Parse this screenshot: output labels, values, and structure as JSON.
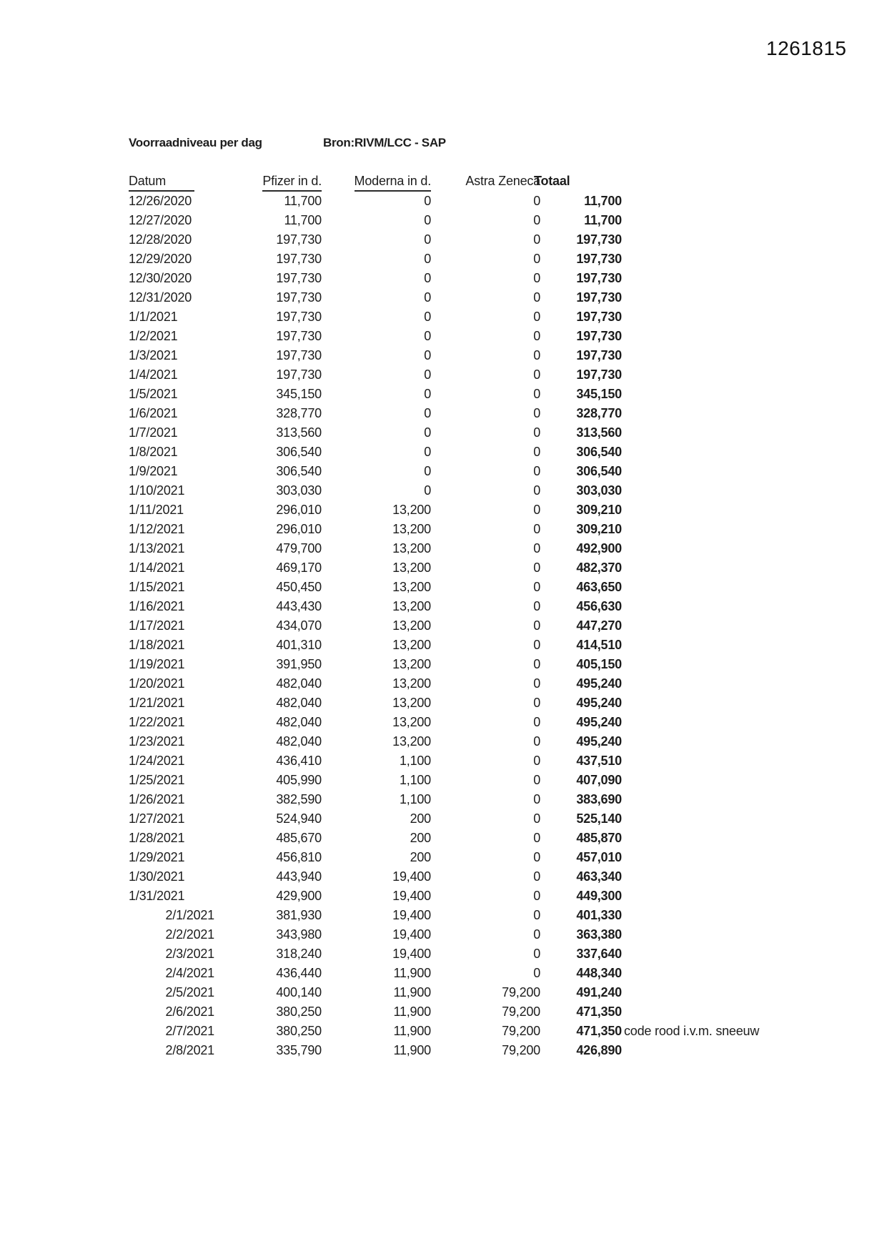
{
  "page": {
    "scan_number": "1261815"
  },
  "header": {
    "title": "Voorraadniveau per dag",
    "source": "Bron:RIVM/LCC - SAP"
  },
  "table": {
    "columns": [
      "Datum",
      "Pfizer in d.",
      "Moderna in d.",
      "Astra Zeneca",
      "Totaal"
    ],
    "rows": [
      {
        "date": "12/26/2020",
        "pfizer": "11,700",
        "moderna": "0",
        "astra": "0",
        "totaal": "11,700",
        "note": ""
      },
      {
        "date": "12/27/2020",
        "pfizer": "11,700",
        "moderna": "0",
        "astra": "0",
        "totaal": "11,700",
        "note": ""
      },
      {
        "date": "12/28/2020",
        "pfizer": "197,730",
        "moderna": "0",
        "astra": "0",
        "totaal": "197,730",
        "note": ""
      },
      {
        "date": "12/29/2020",
        "pfizer": "197,730",
        "moderna": "0",
        "astra": "0",
        "totaal": "197,730",
        "note": ""
      },
      {
        "date": "12/30/2020",
        "pfizer": "197,730",
        "moderna": "0",
        "astra": "0",
        "totaal": "197,730",
        "note": ""
      },
      {
        "date": "12/31/2020",
        "pfizer": "197,730",
        "moderna": "0",
        "astra": "0",
        "totaal": "197,730",
        "note": ""
      },
      {
        "date": "1/1/2021",
        "pfizer": "197,730",
        "moderna": "0",
        "astra": "0",
        "totaal": "197,730",
        "note": ""
      },
      {
        "date": "1/2/2021",
        "pfizer": "197,730",
        "moderna": "0",
        "astra": "0",
        "totaal": "197,730",
        "note": ""
      },
      {
        "date": "1/3/2021",
        "pfizer": "197,730",
        "moderna": "0",
        "astra": "0",
        "totaal": "197,730",
        "note": ""
      },
      {
        "date": "1/4/2021",
        "pfizer": "197,730",
        "moderna": "0",
        "astra": "0",
        "totaal": "197,730",
        "note": ""
      },
      {
        "date": "1/5/2021",
        "pfizer": "345,150",
        "moderna": "0",
        "astra": "0",
        "totaal": "345,150",
        "note": ""
      },
      {
        "date": "1/6/2021",
        "pfizer": "328,770",
        "moderna": "0",
        "astra": "0",
        "totaal": "328,770",
        "note": ""
      },
      {
        "date": "1/7/2021",
        "pfizer": "313,560",
        "moderna": "0",
        "astra": "0",
        "totaal": "313,560",
        "note": ""
      },
      {
        "date": "1/8/2021",
        "pfizer": "306,540",
        "moderna": "0",
        "astra": "0",
        "totaal": "306,540",
        "note": ""
      },
      {
        "date": "1/9/2021",
        "pfizer": "306,540",
        "moderna": "0",
        "astra": "0",
        "totaal": "306,540",
        "note": ""
      },
      {
        "date": "1/10/2021",
        "pfizer": "303,030",
        "moderna": "0",
        "astra": "0",
        "totaal": "303,030",
        "note": ""
      },
      {
        "date": "1/11/2021",
        "pfizer": "296,010",
        "moderna": "13,200",
        "astra": "0",
        "totaal": "309,210",
        "note": ""
      },
      {
        "date": "1/12/2021",
        "pfizer": "296,010",
        "moderna": "13,200",
        "astra": "0",
        "totaal": "309,210",
        "note": ""
      },
      {
        "date": "1/13/2021",
        "pfizer": "479,700",
        "moderna": "13,200",
        "astra": "0",
        "totaal": "492,900",
        "note": ""
      },
      {
        "date": "1/14/2021",
        "pfizer": "469,170",
        "moderna": "13,200",
        "astra": "0",
        "totaal": "482,370",
        "note": ""
      },
      {
        "date": "1/15/2021",
        "pfizer": "450,450",
        "moderna": "13,200",
        "astra": "0",
        "totaal": "463,650",
        "note": ""
      },
      {
        "date": "1/16/2021",
        "pfizer": "443,430",
        "moderna": "13,200",
        "astra": "0",
        "totaal": "456,630",
        "note": ""
      },
      {
        "date": "1/17/2021",
        "pfizer": "434,070",
        "moderna": "13,200",
        "astra": "0",
        "totaal": "447,270",
        "note": ""
      },
      {
        "date": "1/18/2021",
        "pfizer": "401,310",
        "moderna": "13,200",
        "astra": "0",
        "totaal": "414,510",
        "note": ""
      },
      {
        "date": "1/19/2021",
        "pfizer": "391,950",
        "moderna": "13,200",
        "astra": "0",
        "totaal": "405,150",
        "note": ""
      },
      {
        "date": "1/20/2021",
        "pfizer": "482,040",
        "moderna": "13,200",
        "astra": "0",
        "totaal": "495,240",
        "note": ""
      },
      {
        "date": "1/21/2021",
        "pfizer": "482,040",
        "moderna": "13,200",
        "astra": "0",
        "totaal": "495,240",
        "note": ""
      },
      {
        "date": "1/22/2021",
        "pfizer": "482,040",
        "moderna": "13,200",
        "astra": "0",
        "totaal": "495,240",
        "note": ""
      },
      {
        "date": "1/23/2021",
        "pfizer": "482,040",
        "moderna": "13,200",
        "astra": "0",
        "totaal": "495,240",
        "note": ""
      },
      {
        "date": "1/24/2021",
        "pfizer": "436,410",
        "moderna": "1,100",
        "astra": "0",
        "totaal": "437,510",
        "note": ""
      },
      {
        "date": "1/25/2021",
        "pfizer": "405,990",
        "moderna": "1,100",
        "astra": "0",
        "totaal": "407,090",
        "note": ""
      },
      {
        "date": "1/26/2021",
        "pfizer": "382,590",
        "moderna": "1,100",
        "astra": "0",
        "totaal": "383,690",
        "note": ""
      },
      {
        "date": "1/27/2021",
        "pfizer": "524,940",
        "moderna": "200",
        "astra": "0",
        "totaal": "525,140",
        "note": ""
      },
      {
        "date": "1/28/2021",
        "pfizer": "485,670",
        "moderna": "200",
        "astra": "0",
        "totaal": "485,870",
        "note": ""
      },
      {
        "date": "1/29/2021",
        "pfizer": "456,810",
        "moderna": "200",
        "astra": "0",
        "totaal": "457,010",
        "note": ""
      },
      {
        "date": "1/30/2021",
        "pfizer": "443,940",
        "moderna": "19,400",
        "astra": "0",
        "totaal": "463,340",
        "note": ""
      },
      {
        "date": "1/31/2021",
        "pfizer": "429,900",
        "moderna": "19,400",
        "astra": "0",
        "totaal": "449,300",
        "note": ""
      },
      {
        "date": "2/1/2021",
        "pfizer": "381,930",
        "moderna": "19,400",
        "astra": "0",
        "totaal": "401,330",
        "note": ""
      },
      {
        "date": "2/2/2021",
        "pfizer": "343,980",
        "moderna": "19,400",
        "astra": "0",
        "totaal": "363,380",
        "note": ""
      },
      {
        "date": "2/3/2021",
        "pfizer": "318,240",
        "moderna": "19,400",
        "astra": "0",
        "totaal": "337,640",
        "note": ""
      },
      {
        "date": "2/4/2021",
        "pfizer": "436,440",
        "moderna": "11,900",
        "astra": "0",
        "totaal": "448,340",
        "note": ""
      },
      {
        "date": "2/5/2021",
        "pfizer": "400,140",
        "moderna": "11,900",
        "astra": "79,200",
        "totaal": "491,240",
        "note": ""
      },
      {
        "date": "2/6/2021",
        "pfizer": "380,250",
        "moderna": "11,900",
        "astra": "79,200",
        "totaal": "471,350",
        "note": ""
      },
      {
        "date": "2/7/2021",
        "pfizer": "380,250",
        "moderna": "11,900",
        "astra": "79,200",
        "totaal": "471,350",
        "note": "code rood i.v.m. sneeuw"
      },
      {
        "date": "2/8/2021",
        "pfizer": "335,790",
        "moderna": "11,900",
        "astra": "79,200",
        "totaal": "426,890",
        "note": ""
      }
    ]
  },
  "colors": {
    "text": "#1d1d1d",
    "underline": "#2a2a2a",
    "background": "#ffffff"
  }
}
